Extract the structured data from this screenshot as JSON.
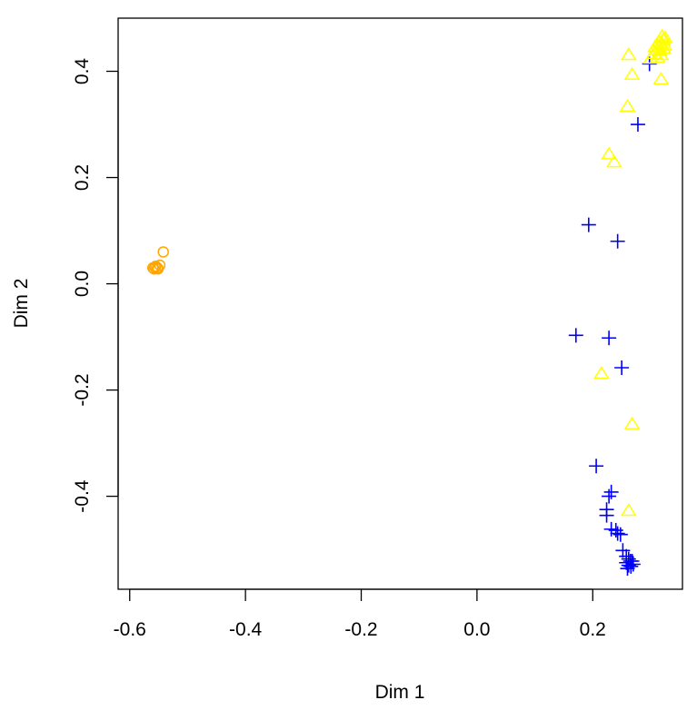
{
  "chart_data": {
    "type": "scatter",
    "title": "",
    "xlabel": "Dim 1",
    "ylabel": "Dim 2",
    "xlim": [
      -0.62,
      0.355
    ],
    "ylim": [
      -0.575,
      0.5
    ],
    "xticks": [
      -0.6,
      -0.4,
      -0.2,
      0.0,
      0.2
    ],
    "xtick_labels": [
      "-0.6",
      "-0.4",
      "-0.2",
      "0.0",
      "0.2"
    ],
    "yticks": [
      -0.4,
      -0.2,
      0.0,
      0.2,
      0.4
    ],
    "ytick_labels": [
      "-0.4",
      "-0.2",
      "0.0",
      "0.2",
      "0.4"
    ],
    "grid": false,
    "legend": "none",
    "series": [
      {
        "marker": "circle",
        "color": "#FFA500",
        "points": [
          [
            -0.542,
            0.06
          ],
          [
            -0.548,
            0.035
          ],
          [
            -0.552,
            0.03
          ],
          [
            -0.556,
            0.031
          ],
          [
            -0.558,
            0.028
          ],
          [
            -0.56,
            0.03
          ],
          [
            -0.555,
            0.033
          ],
          [
            -0.551,
            0.028
          ]
        ]
      },
      {
        "marker": "cross",
        "color": "#0000FF",
        "points": [
          [
            0.298,
            0.414
          ],
          [
            0.278,
            0.3
          ],
          [
            0.193,
            0.111
          ],
          [
            0.243,
            0.08
          ],
          [
            0.171,
            -0.097
          ],
          [
            0.228,
            -0.102
          ],
          [
            0.25,
            -0.158
          ],
          [
            0.206,
            -0.343
          ],
          [
            0.232,
            -0.392
          ],
          [
            0.228,
            -0.4
          ],
          [
            0.224,
            -0.425
          ],
          [
            0.224,
            -0.436
          ],
          [
            0.232,
            -0.462
          ],
          [
            0.24,
            -0.464
          ],
          [
            0.243,
            -0.47
          ],
          [
            0.248,
            -0.472
          ],
          [
            0.252,
            -0.502
          ],
          [
            0.258,
            -0.513
          ],
          [
            0.262,
            -0.518
          ],
          [
            0.265,
            -0.522
          ],
          [
            0.258,
            -0.525
          ],
          [
            0.268,
            -0.522
          ],
          [
            0.27,
            -0.528
          ],
          [
            0.262,
            -0.53
          ],
          [
            0.266,
            -0.532
          ],
          [
            0.26,
            -0.536
          ]
        ]
      },
      {
        "marker": "triangle",
        "color": "#FFFF00",
        "points": [
          [
            0.262,
            0.43
          ],
          [
            0.268,
            0.393
          ],
          [
            0.318,
            0.384
          ],
          [
            0.26,
            0.333
          ],
          [
            0.228,
            0.243
          ],
          [
            0.237,
            0.228
          ],
          [
            0.215,
            -0.17
          ],
          [
            0.268,
            -0.265
          ],
          [
            0.262,
            -0.428
          ],
          [
            0.3,
            0.423
          ],
          [
            0.306,
            0.432
          ],
          [
            0.31,
            0.44
          ],
          [
            0.314,
            0.446
          ],
          [
            0.318,
            0.452
          ],
          [
            0.322,
            0.458
          ],
          [
            0.325,
            0.462
          ],
          [
            0.32,
            0.465
          ],
          [
            0.315,
            0.455
          ],
          [
            0.308,
            0.445
          ],
          [
            0.312,
            0.425
          ],
          [
            0.318,
            0.43
          ],
          [
            0.324,
            0.448
          ],
          [
            0.316,
            0.438
          ],
          [
            0.322,
            0.442
          ],
          [
            0.311,
            0.45
          ]
        ]
      }
    ]
  }
}
